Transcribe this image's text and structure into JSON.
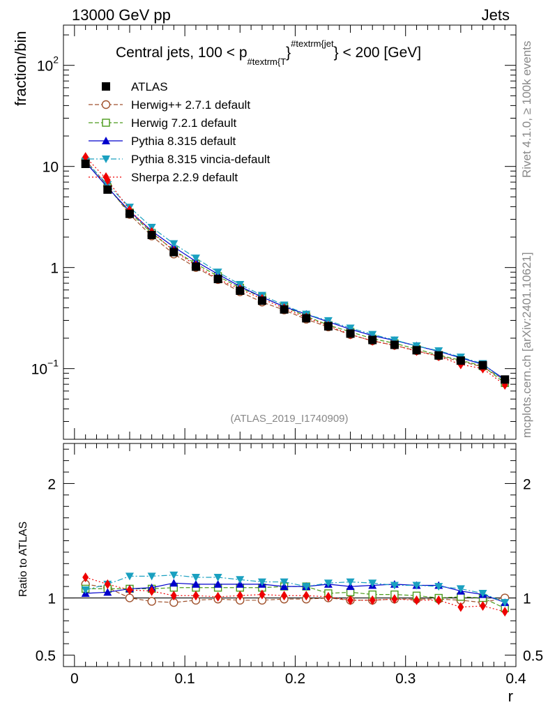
{
  "header": {
    "left": "13000 GeV pp",
    "right": "Jets"
  },
  "side_labels": {
    "rivet": "Rivet 4.1.0, ≥ 100k events",
    "mcplots": "mcplots.cern.ch [arXiv:2401.10621]"
  },
  "watermark": "(ATLAS_2019_I1740909)",
  "colors": {
    "atlas": "#000000",
    "herwigpp": "#a0522d",
    "herwig7": "#4a9a1a",
    "pythia": "#0000cc",
    "vincia": "#1aa0c0",
    "sherpa": "#ee0000"
  },
  "chart_data": [
    {
      "type": "line",
      "title_main": "Central jets, 100 < p",
      "title_sub": "#textrm{T",
      "title_sup": "#textrm{jet",
      "title_brace_sub": "}",
      "title_brace_sup": "}",
      "title_end": " < 200 [GeV]",
      "ylabel": "fraction/bin",
      "yscale": "log",
      "ylim": [
        0.02,
        250
      ],
      "xlim": [
        -0.01,
        0.4
      ],
      "y_ticks": [
        {
          "v": 100,
          "base": "10",
          "exp": "2"
        },
        {
          "v": 10,
          "base": "10",
          "exp": ""
        },
        {
          "v": 1,
          "base": "1",
          "exp": ""
        },
        {
          "v": 0.1,
          "base": "10",
          "exp": "−1"
        }
      ],
      "x": [
        0.01,
        0.03,
        0.05,
        0.07,
        0.09,
        0.11,
        0.13,
        0.15,
        0.17,
        0.19,
        0.21,
        0.23,
        0.25,
        0.27,
        0.29,
        0.31,
        0.33,
        0.35,
        0.37,
        0.39
      ],
      "series": [
        {
          "name": "ATLAS",
          "key": "atlas",
          "marker": "square",
          "dash": "none",
          "values": [
            10.6,
            5.9,
            3.4,
            2.1,
            1.42,
            1.02,
            0.77,
            0.59,
            0.47,
            0.385,
            0.315,
            0.262,
            0.222,
            0.192,
            0.172,
            0.152,
            0.135,
            0.12,
            0.108,
            0.078
          ]
        },
        {
          "name": "Herwig++ 2.7.1 default",
          "key": "herwigpp",
          "marker": "open-circle",
          "dash": "6,3",
          "values": [
            11.6,
            6.4,
            3.35,
            2.05,
            1.36,
            1.0,
            0.76,
            0.575,
            0.455,
            0.38,
            0.308,
            0.258,
            0.217,
            0.188,
            0.17,
            0.15,
            0.133,
            0.118,
            0.104,
            0.077
          ]
        },
        {
          "name": "Herwig 7.2.1 default",
          "key": "herwig7",
          "marker": "open-square",
          "dash": "6,3",
          "values": [
            11.1,
            6.2,
            3.5,
            2.2,
            1.48,
            1.09,
            0.82,
            0.63,
            0.51,
            0.41,
            0.33,
            0.27,
            0.231,
            0.198,
            0.178,
            0.156,
            0.136,
            0.121,
            0.106,
            0.072
          ]
        },
        {
          "name": "Pythia 8.315 default",
          "key": "pythia",
          "marker": "triangle-up",
          "dash": "none",
          "values": [
            11.0,
            6.2,
            3.6,
            2.3,
            1.6,
            1.15,
            0.86,
            0.65,
            0.51,
            0.41,
            0.345,
            0.29,
            0.245,
            0.212,
            0.19,
            0.168,
            0.148,
            0.128,
            0.11,
            0.078
          ]
        },
        {
          "name": "Pythia 8.315 vincia-default",
          "key": "vincia",
          "marker": "triangle-down",
          "dash": "8,3,2,3",
          "values": [
            11.3,
            6.6,
            3.95,
            2.5,
            1.72,
            1.24,
            0.9,
            0.68,
            0.53,
            0.425,
            0.345,
            0.298,
            0.252,
            0.218,
            0.192,
            0.168,
            0.15,
            0.13,
            0.112,
            0.075
          ]
        },
        {
          "name": "Sherpa 2.2.9 default",
          "key": "sherpa",
          "marker": "diamond",
          "dash": "2,3",
          "values": [
            12.4,
            7.3,
            3.7,
            2.25,
            1.46,
            1.05,
            0.77,
            0.61,
            0.49,
            0.395,
            0.32,
            0.265,
            0.218,
            0.188,
            0.17,
            0.149,
            0.132,
            0.11,
            0.1,
            0.069
          ]
        }
      ]
    },
    {
      "type": "line",
      "ylabel": "Ratio to ATLAS",
      "xlabel": "r",
      "ylim": [
        0.4,
        2.35
      ],
      "xlim": [
        -0.01,
        0.4
      ],
      "reference_line": 1,
      "y_ticks": [
        0.5,
        1,
        2
      ],
      "y_tick_labels": [
        "0.5",
        "1",
        "2"
      ],
      "x_ticks": [
        0,
        0.1,
        0.2,
        0.3,
        0.4
      ],
      "x_tick_labels": [
        "0",
        "0.1",
        "0.2",
        "0.3",
        "0.4"
      ],
      "x": [
        0.01,
        0.03,
        0.05,
        0.07,
        0.09,
        0.11,
        0.13,
        0.15,
        0.17,
        0.19,
        0.21,
        0.23,
        0.25,
        0.27,
        0.29,
        0.31,
        0.33,
        0.35,
        0.37,
        0.39
      ],
      "series": [
        {
          "name": "Herwig++ 2.7.1 default",
          "key": "herwigpp",
          "marker": "open-circle",
          "dash": "6,3",
          "values": [
            1.12,
            1.09,
            1.0,
            0.97,
            0.96,
            0.98,
            0.99,
            0.98,
            0.98,
            0.99,
            0.99,
            1.0,
            0.98,
            0.98,
            0.99,
            0.99,
            0.99,
            0.98,
            0.96,
            1.0
          ]
        },
        {
          "name": "Herwig 7.2.1 default",
          "key": "herwig7",
          "marker": "open-square",
          "dash": "6,3",
          "values": [
            1.08,
            1.08,
            1.08,
            1.08,
            1.09,
            1.09,
            1.09,
            1.09,
            1.09,
            1.1,
            1.1,
            1.04,
            1.05,
            1.03,
            1.03,
            1.02,
            1.0,
            1.01,
            1.0,
            0.91
          ]
        },
        {
          "name": "Pythia 8.315 default",
          "key": "pythia",
          "marker": "triangle-up",
          "dash": "none",
          "values": [
            1.04,
            1.05,
            1.08,
            1.09,
            1.13,
            1.12,
            1.12,
            1.12,
            1.12,
            1.1,
            1.1,
            1.12,
            1.1,
            1.11,
            1.12,
            1.11,
            1.11,
            1.06,
            1.03,
            0.96
          ]
        },
        {
          "name": "Pythia 8.315 vincia-default",
          "key": "vincia",
          "marker": "triangle-down",
          "dash": "8,3,2,3",
          "values": [
            1.07,
            1.12,
            1.19,
            1.19,
            1.2,
            1.18,
            1.18,
            1.16,
            1.14,
            1.14,
            1.1,
            1.13,
            1.14,
            1.13,
            1.11,
            1.11,
            1.1,
            1.08,
            1.04,
            0.96
          ]
        },
        {
          "name": "Sherpa 2.2.9 default",
          "key": "sherpa",
          "marker": "diamond",
          "dash": "2,3",
          "values": [
            1.18,
            1.12,
            1.07,
            1.06,
            1.02,
            1.02,
            1.01,
            1.02,
            1.03,
            1.02,
            1.02,
            1.01,
            0.98,
            0.98,
            0.99,
            0.98,
            0.98,
            0.92,
            0.93,
            0.88
          ]
        }
      ]
    }
  ]
}
